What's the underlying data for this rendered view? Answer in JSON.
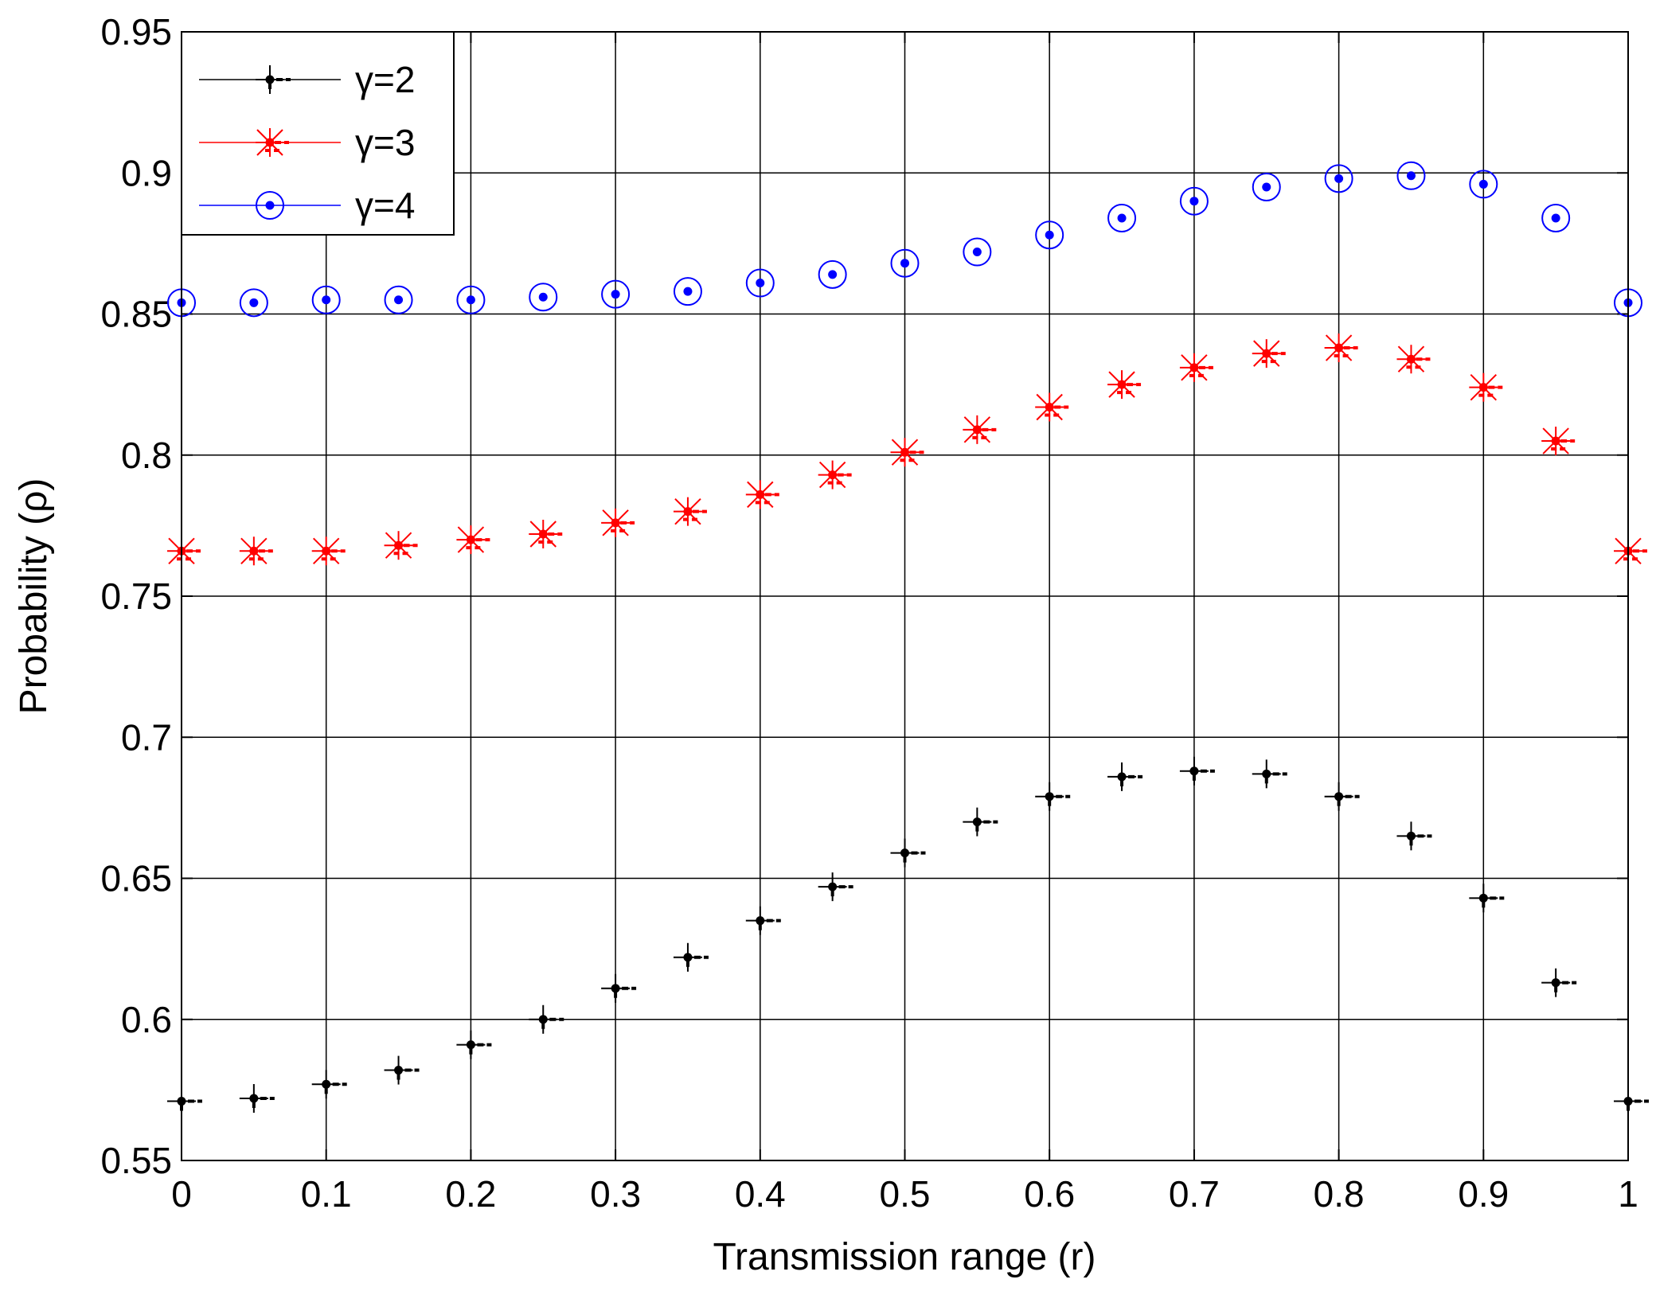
{
  "chart_data": {
    "type": "scatter",
    "title": "",
    "xlabel": "Transmission range (r)",
    "ylabel": "Probability (ρ)",
    "xlim": [
      0,
      1
    ],
    "ylim": [
      0.55,
      0.95
    ],
    "xticks": [
      "0",
      "0.1",
      "0.2",
      "0.3",
      "0.4",
      "0.5",
      "0.6",
      "0.7",
      "0.8",
      "0.9",
      "1"
    ],
    "yticks": [
      "0.55",
      "0.6",
      "0.65",
      "0.7",
      "0.75",
      "0.8",
      "0.85",
      "0.9",
      "0.95"
    ],
    "grid": true,
    "legend_position": "top-left",
    "x": [
      0,
      0.05,
      0.1,
      0.15,
      0.2,
      0.25,
      0.3,
      0.35,
      0.4,
      0.45,
      0.5,
      0.55,
      0.6,
      0.65,
      0.7,
      0.75,
      0.8,
      0.85,
      0.9,
      0.95,
      1
    ],
    "series": [
      {
        "name": "γ=2",
        "color": "#000000",
        "marker": "plus",
        "values": [
          0.571,
          0.572,
          0.577,
          0.582,
          0.591,
          0.6,
          0.611,
          0.622,
          0.635,
          0.647,
          0.659,
          0.67,
          0.679,
          0.686,
          0.688,
          0.687,
          0.679,
          0.665,
          0.643,
          0.613,
          0.571
        ]
      },
      {
        "name": "γ=3",
        "color": "#ff0000",
        "marker": "star",
        "values": [
          0.766,
          0.766,
          0.766,
          0.768,
          0.77,
          0.772,
          0.776,
          0.78,
          0.786,
          0.793,
          0.801,
          0.809,
          0.817,
          0.825,
          0.831,
          0.836,
          0.838,
          0.834,
          0.824,
          0.805,
          0.766
        ]
      },
      {
        "name": "γ=4",
        "color": "#0000ff",
        "marker": "circle",
        "values": [
          0.854,
          0.854,
          0.855,
          0.855,
          0.855,
          0.856,
          0.857,
          0.858,
          0.861,
          0.864,
          0.868,
          0.872,
          0.878,
          0.884,
          0.89,
          0.895,
          0.898,
          0.899,
          0.896,
          0.884,
          0.854
        ]
      }
    ]
  }
}
